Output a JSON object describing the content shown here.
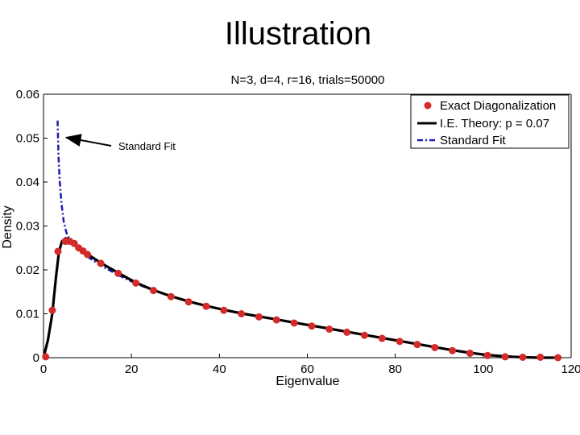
{
  "slide": {
    "title": "Illustration"
  },
  "chart_data": {
    "type": "line",
    "title": "N=3, d=4, r=16, trials=50000",
    "xlabel": "Eigenvalue",
    "ylabel": "Density",
    "xlim": [
      0,
      120
    ],
    "ylim": [
      0,
      0.06
    ],
    "x_ticks": [
      "0",
      "20",
      "40",
      "60",
      "80",
      "100",
      "120"
    ],
    "y_ticks": [
      "0",
      "0.01",
      "0.02",
      "0.03",
      "0.04",
      "0.05",
      "0.06"
    ],
    "grid": false,
    "legend_position": "top-right",
    "series": [
      {
        "name": "Exact Diagonalization",
        "style": "markers",
        "color": "#d42a2a",
        "points": [
          [
            0.5,
            0.0002
          ],
          [
            2,
            0.0108
          ],
          [
            3.3,
            0.0242
          ],
          [
            5,
            0.0265
          ],
          [
            6,
            0.0265
          ],
          [
            7,
            0.026
          ],
          [
            8,
            0.025
          ],
          [
            9,
            0.0243
          ],
          [
            10,
            0.0235
          ],
          [
            13,
            0.0215
          ],
          [
            17,
            0.0192
          ],
          [
            21,
            0.017
          ],
          [
            25,
            0.0153
          ],
          [
            29,
            0.0139
          ],
          [
            33,
            0.0127
          ],
          [
            37,
            0.0117
          ],
          [
            41,
            0.0108
          ],
          [
            45,
            0.01
          ],
          [
            49,
            0.0093
          ],
          [
            53,
            0.0086
          ],
          [
            57,
            0.0079
          ],
          [
            61,
            0.0072
          ],
          [
            65,
            0.0065
          ],
          [
            69,
            0.0058
          ],
          [
            73,
            0.0051
          ],
          [
            77,
            0.0044
          ],
          [
            81,
            0.0037
          ],
          [
            85,
            0.003
          ],
          [
            89,
            0.0023
          ],
          [
            93,
            0.0016
          ],
          [
            97,
            0.001
          ],
          [
            101,
            0.0005
          ],
          [
            105,
            0.0002
          ],
          [
            109,
            0.0001
          ],
          [
            113,
            0.0001
          ],
          [
            117,
            0.0
          ]
        ]
      },
      {
        "name": "I.E. Theory: p = 0.07",
        "style": "solid",
        "color": "#000000",
        "points": [
          [
            0,
            0
          ],
          [
            1,
            0.004
          ],
          [
            2,
            0.01
          ],
          [
            2.8,
            0.018
          ],
          [
            3.5,
            0.024
          ],
          [
            4.2,
            0.0265
          ],
          [
            5,
            0.0272
          ],
          [
            6,
            0.0268
          ],
          [
            7,
            0.0261
          ],
          [
            8,
            0.0252
          ],
          [
            9,
            0.0244
          ],
          [
            10,
            0.0236
          ],
          [
            13,
            0.0216
          ],
          [
            17,
            0.0193
          ],
          [
            21,
            0.0171
          ],
          [
            25,
            0.0154
          ],
          [
            29,
            0.014
          ],
          [
            33,
            0.0128
          ],
          [
            37,
            0.0118
          ],
          [
            41,
            0.0109
          ],
          [
            45,
            0.0101
          ],
          [
            49,
            0.0094
          ],
          [
            53,
            0.0087
          ],
          [
            57,
            0.008
          ],
          [
            61,
            0.0073
          ],
          [
            65,
            0.0066
          ],
          [
            69,
            0.0059
          ],
          [
            73,
            0.0052
          ],
          [
            77,
            0.0045
          ],
          [
            81,
            0.0038
          ],
          [
            85,
            0.0031
          ],
          [
            89,
            0.0024
          ],
          [
            93,
            0.0017
          ],
          [
            97,
            0.0011
          ],
          [
            101,
            0.0006
          ],
          [
            105,
            0.0003
          ],
          [
            109,
            0.0001
          ],
          [
            113,
            0.0
          ],
          [
            117,
            0.0
          ]
        ]
      },
      {
        "name": "Standard Fit",
        "style": "dash-dot",
        "color": "#1a1ab4",
        "points": [
          [
            3.2,
            0.054
          ],
          [
            3.4,
            0.046
          ],
          [
            3.7,
            0.04
          ],
          [
            4.1,
            0.035
          ],
          [
            4.6,
            0.031
          ],
          [
            5.2,
            0.0285
          ],
          [
            6,
            0.0268
          ],
          [
            7,
            0.0257
          ],
          [
            8,
            0.0247
          ],
          [
            9,
            0.0238
          ],
          [
            10,
            0.023
          ],
          [
            13,
            0.021
          ],
          [
            17,
            0.0188
          ],
          [
            21,
            0.0169
          ],
          [
            25,
            0.0153
          ],
          [
            29,
            0.014
          ],
          [
            33,
            0.0128
          ],
          [
            37,
            0.0118
          ],
          [
            41,
            0.0109
          ],
          [
            45,
            0.0101
          ],
          [
            49,
            0.0094
          ],
          [
            53,
            0.0087
          ],
          [
            57,
            0.008
          ],
          [
            61,
            0.0073
          ],
          [
            65,
            0.0066
          ],
          [
            69,
            0.0059
          ],
          [
            73,
            0.0052
          ],
          [
            77,
            0.0045
          ],
          [
            81,
            0.0038
          ],
          [
            85,
            0.0031
          ],
          [
            89,
            0.0024
          ],
          [
            93,
            0.0017
          ],
          [
            97,
            0.0011
          ],
          [
            101,
            0.0006
          ],
          [
            105,
            0.0003
          ],
          [
            109,
            0.0001
          ],
          [
            113,
            0.0
          ],
          [
            117,
            0.0
          ]
        ]
      }
    ],
    "annotations": [
      {
        "text": "Standard Fit",
        "arrow_to": [
          4.5,
          0.0505
        ]
      }
    ]
  }
}
